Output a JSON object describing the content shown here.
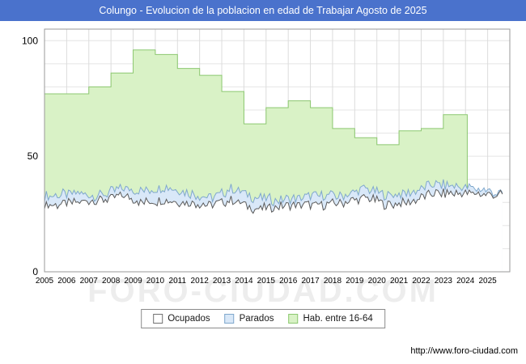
{
  "titlebar": {
    "title": "Colungo - Evolucion de la poblacion en edad de Trabajar Agosto de 2025",
    "bg": "#4a72cc"
  },
  "watermark": "FORO-CIUDAD.COM",
  "footer": {
    "url": "http://www.foro-ciudad.com"
  },
  "legend": {
    "items": [
      {
        "label": "Ocupados",
        "fill": "#ffffff",
        "border": "#707070"
      },
      {
        "label": "Parados",
        "fill": "#d9e8f8",
        "border": "#7fa8cc"
      },
      {
        "label": "Hab. entre 16-64",
        "fill": "#d9f2c6",
        "border": "#8cc870"
      }
    ]
  },
  "chart_data": {
    "type": "area",
    "title": "Colungo - Evolucion de la poblacion en edad de Trabajar Agosto de 2025",
    "xlabel": "",
    "ylabel": "",
    "x_tick_labels": [
      "2005",
      "2006",
      "2007",
      "2008",
      "2009",
      "2010",
      "2011",
      "2012",
      "2013",
      "2014",
      "2015",
      "2016",
      "2017",
      "2018",
      "2019",
      "2020",
      "2021",
      "2022",
      "2023",
      "2024",
      "2025"
    ],
    "ylim": [
      0,
      105
    ],
    "yticks": [
      0,
      50,
      100
    ],
    "grid": true,
    "legend_position": "bottom",
    "series": [
      {
        "name": "Hab. entre 16-64",
        "type": "step-area",
        "years_start": 2005,
        "values": [
          77,
          77,
          80,
          86,
          96,
          94,
          88,
          85,
          78,
          64,
          71,
          74,
          71,
          62,
          58,
          55,
          61,
          62,
          68
        ],
        "data_end_x": 2024.08,
        "fill": "#d9f2c6",
        "stroke": "#8cc870"
      },
      {
        "name": "Parados",
        "type": "area",
        "annual_values": [
          33,
          34,
          33,
          36,
          35,
          37,
          34,
          32,
          36,
          32,
          31,
          32,
          33,
          33,
          36,
          33,
          34,
          38,
          37,
          36,
          34
        ],
        "jitter": 2.2,
        "data_end_x": 2025.67,
        "fill": "#d9e8f8",
        "stroke": "#7fa8cc"
      },
      {
        "name": "Ocupados",
        "type": "area",
        "annual_values": [
          29,
          30,
          31,
          33,
          30,
          31,
          30,
          29,
          31,
          27,
          28,
          29,
          29,
          30,
          32,
          29,
          30,
          34,
          34,
          34,
          33
        ],
        "jitter": 2.0,
        "data_end_x": 2025.67,
        "fill": "#ffffff",
        "stroke": "#5a5a5a"
      }
    ]
  }
}
